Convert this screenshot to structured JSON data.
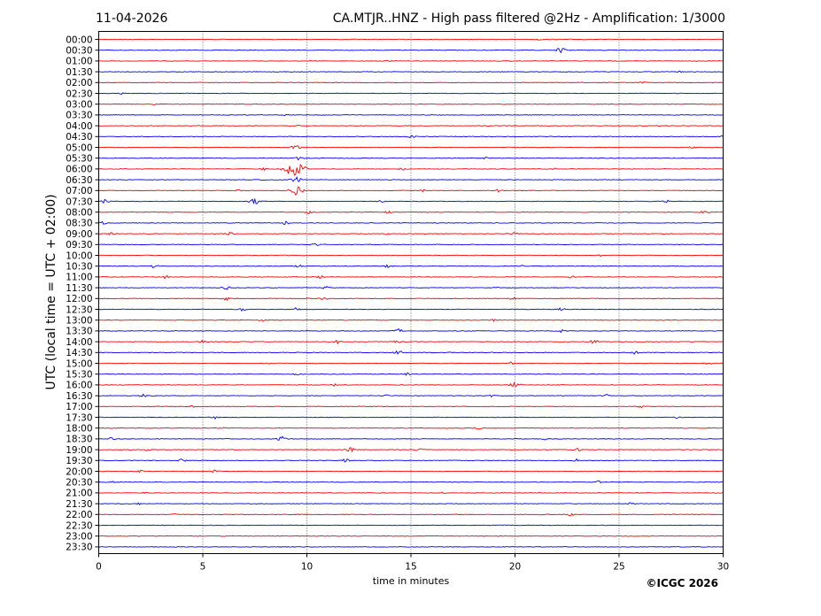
{
  "chart_data": {
    "type": "line",
    "date": "11-04-2026",
    "title": "CA.MTJR..HNZ - High pass filtered @2Hz - Amplification: 1/3000",
    "xlabel": "time in minutes",
    "ylabel": "UTC (local time = UTC + 02:00)",
    "copyright": "©ICGC 2026",
    "xlim": [
      0,
      30
    ],
    "x_ticks": [
      0,
      5,
      10,
      15,
      20,
      25,
      30
    ],
    "grid": "vertical dotted lines at 5-minute intervals",
    "line_colors": [
      "#ff0000",
      "#0000ff"
    ],
    "rows": [
      {
        "label": "00:00",
        "color": "#ff0000",
        "events": [
          {
            "t": 21.1,
            "amp": 0.15
          }
        ]
      },
      {
        "label": "00:30",
        "color": "#0000ff",
        "events": [
          {
            "t": 22.2,
            "amp": 0.45
          }
        ]
      },
      {
        "label": "01:00",
        "color": "#ff0000",
        "events": [
          {
            "t": 13.9,
            "amp": 0.12
          }
        ]
      },
      {
        "label": "01:30",
        "color": "#0000ff",
        "events": [
          {
            "t": 27.9,
            "amp": 0.15
          }
        ]
      },
      {
        "label": "02:00",
        "color": "#ff0000",
        "events": [
          {
            "t": 11.5,
            "amp": 0.15
          },
          {
            "t": 26.1,
            "amp": 0.2
          }
        ]
      },
      {
        "label": "02:30",
        "color": "#0000ff",
        "events": [
          {
            "t": 1.1,
            "amp": 0.12
          }
        ]
      },
      {
        "label": "03:00",
        "color": "#ff0000",
        "events": [
          {
            "t": 2.6,
            "amp": 0.15
          }
        ]
      },
      {
        "label": "03:30",
        "color": "#0000ff",
        "events": [
          {
            "t": 9.0,
            "amp": 0.1
          }
        ]
      },
      {
        "label": "04:00",
        "color": "#ff0000",
        "events": [
          {
            "t": 9.5,
            "amp": 0.1
          }
        ]
      },
      {
        "label": "04:30",
        "color": "#0000ff",
        "events": [
          {
            "t": 15.0,
            "amp": 0.25
          },
          {
            "t": 29.9,
            "amp": 0.15
          }
        ]
      },
      {
        "label": "05:00",
        "color": "#ff0000",
        "events": [
          {
            "t": 9.5,
            "amp": 0.6
          },
          {
            "t": 28.5,
            "amp": 0.15
          }
        ]
      },
      {
        "label": "05:30",
        "color": "#0000ff",
        "events": [
          {
            "t": 18.6,
            "amp": 0.15
          },
          {
            "t": 9.6,
            "amp": 0.35
          }
        ]
      },
      {
        "label": "06:00",
        "color": "#ff0000",
        "events": [
          {
            "t": 9.4,
            "amp": 1.6
          },
          {
            "t": 14.6,
            "amp": 0.3
          },
          {
            "t": 22.0,
            "amp": 0.15
          },
          {
            "t": 7.9,
            "amp": 0.25
          }
        ]
      },
      {
        "label": "06:30",
        "color": "#0000ff",
        "events": [
          {
            "t": 9.5,
            "amp": 0.5
          },
          {
            "t": 7.9,
            "amp": 0.12
          }
        ]
      },
      {
        "label": "07:00",
        "color": "#ff0000",
        "events": [
          {
            "t": 6.8,
            "amp": 0.25
          },
          {
            "t": 15.6,
            "amp": 0.2
          },
          {
            "t": 19.2,
            "amp": 0.3
          },
          {
            "t": 9.5,
            "amp": 0.9
          }
        ]
      },
      {
        "label": "07:30",
        "color": "#0000ff",
        "events": [
          {
            "t": 0.3,
            "amp": 0.35
          },
          {
            "t": 7.5,
            "amp": 0.55
          },
          {
            "t": 13.5,
            "amp": 0.25
          },
          {
            "t": 27.3,
            "amp": 0.25
          }
        ]
      },
      {
        "label": "08:00",
        "color": "#ff0000",
        "events": [
          {
            "t": 10.1,
            "amp": 0.3
          },
          {
            "t": 13.9,
            "amp": 0.3
          },
          {
            "t": 29.1,
            "amp": 0.3
          }
        ]
      },
      {
        "label": "08:30",
        "color": "#0000ff",
        "events": [
          {
            "t": 9.0,
            "amp": 0.3
          },
          {
            "t": 0.2,
            "amp": 0.25
          }
        ]
      },
      {
        "label": "09:00",
        "color": "#ff0000",
        "events": [
          {
            "t": 6.3,
            "amp": 0.35
          },
          {
            "t": 13.9,
            "amp": 0.2
          },
          {
            "t": 19.9,
            "amp": 0.3
          },
          {
            "t": 0.6,
            "amp": 0.2
          }
        ]
      },
      {
        "label": "09:30",
        "color": "#0000ff",
        "events": [
          {
            "t": 10.4,
            "amp": 0.25
          }
        ]
      },
      {
        "label": "10:00",
        "color": "#ff0000",
        "events": [
          {
            "t": 24.1,
            "amp": 0.15
          }
        ]
      },
      {
        "label": "10:30",
        "color": "#0000ff",
        "events": [
          {
            "t": 2.7,
            "amp": 0.35
          },
          {
            "t": 9.6,
            "amp": 0.25
          },
          {
            "t": 13.9,
            "amp": 0.25
          },
          {
            "t": 20.3,
            "amp": 0.15
          }
        ]
      },
      {
        "label": "11:00",
        "color": "#ff0000",
        "events": [
          {
            "t": 3.2,
            "amp": 0.35
          },
          {
            "t": 10.6,
            "amp": 0.3
          },
          {
            "t": 22.7,
            "amp": 0.2
          }
        ]
      },
      {
        "label": "11:30",
        "color": "#0000ff",
        "events": [
          {
            "t": 6.1,
            "amp": 0.35
          },
          {
            "t": 10.9,
            "amp": 0.3
          },
          {
            "t": 19.0,
            "amp": 0.2
          }
        ]
      },
      {
        "label": "12:00",
        "color": "#ff0000",
        "events": [
          {
            "t": 6.1,
            "amp": 0.35
          },
          {
            "t": 10.8,
            "amp": 0.3
          },
          {
            "t": 19.9,
            "amp": 0.2
          }
        ]
      },
      {
        "label": "12:30",
        "color": "#0000ff",
        "events": [
          {
            "t": 6.9,
            "amp": 0.3
          },
          {
            "t": 9.5,
            "amp": 0.3
          },
          {
            "t": 22.2,
            "amp": 0.25
          }
        ]
      },
      {
        "label": "13:00",
        "color": "#ff0000",
        "events": [
          {
            "t": 7.9,
            "amp": 0.3
          },
          {
            "t": 19.0,
            "amp": 0.2
          }
        ]
      },
      {
        "label": "13:30",
        "color": "#0000ff",
        "events": [
          {
            "t": 14.4,
            "amp": 0.35
          },
          {
            "t": 22.2,
            "amp": 0.35
          }
        ]
      },
      {
        "label": "14:00",
        "color": "#ff0000",
        "events": [
          {
            "t": 5.0,
            "amp": 0.3
          },
          {
            "t": 11.5,
            "amp": 0.35
          },
          {
            "t": 14.3,
            "amp": 0.3
          },
          {
            "t": 23.8,
            "amp": 0.35
          }
        ]
      },
      {
        "label": "14:30",
        "color": "#0000ff",
        "events": [
          {
            "t": 14.4,
            "amp": 0.35
          },
          {
            "t": 25.8,
            "amp": 0.35
          }
        ]
      },
      {
        "label": "15:00",
        "color": "#ff0000",
        "events": [
          {
            "t": 8.0,
            "amp": 0.3
          },
          {
            "t": 19.8,
            "amp": 0.25
          },
          {
            "t": 29.3,
            "amp": 0.25
          }
        ]
      },
      {
        "label": "15:30",
        "color": "#0000ff",
        "events": [
          {
            "t": 9.6,
            "amp": 0.3
          },
          {
            "t": 14.8,
            "amp": 0.2
          }
        ]
      },
      {
        "label": "16:00",
        "color": "#ff0000",
        "events": [
          {
            "t": 11.4,
            "amp": 0.25
          },
          {
            "t": 20.0,
            "amp": 0.55
          }
        ]
      },
      {
        "label": "16:30",
        "color": "#0000ff",
        "events": [
          {
            "t": 2.1,
            "amp": 0.3
          },
          {
            "t": 13.7,
            "amp": 0.25
          },
          {
            "t": 18.9,
            "amp": 0.2
          },
          {
            "t": 24.4,
            "amp": 0.3
          }
        ]
      },
      {
        "label": "17:00",
        "color": "#ff0000",
        "events": [
          {
            "t": 26.0,
            "amp": 0.25
          },
          {
            "t": 4.5,
            "amp": 0.2
          }
        ]
      },
      {
        "label": "17:30",
        "color": "#0000ff",
        "events": [
          {
            "t": 5.6,
            "amp": 0.35
          },
          {
            "t": 27.8,
            "amp": 0.2
          }
        ]
      },
      {
        "label": "18:00",
        "color": "#ff0000",
        "events": [
          {
            "t": 18.2,
            "amp": 0.25
          },
          {
            "t": 6.0,
            "amp": 0.15
          }
        ]
      },
      {
        "label": "18:30",
        "color": "#0000ff",
        "events": [
          {
            "t": 0.6,
            "amp": 0.3
          },
          {
            "t": 8.8,
            "amp": 0.45
          },
          {
            "t": 21.5,
            "amp": 0.25
          }
        ]
      },
      {
        "label": "19:00",
        "color": "#ff0000",
        "events": [
          {
            "t": 2.4,
            "amp": 0.3
          },
          {
            "t": 12.1,
            "amp": 0.35
          },
          {
            "t": 23.0,
            "amp": 0.3
          },
          {
            "t": 15.4,
            "amp": 0.25
          }
        ]
      },
      {
        "label": "19:30",
        "color": "#0000ff",
        "events": [
          {
            "t": 4.0,
            "amp": 0.25
          },
          {
            "t": 11.9,
            "amp": 0.35
          },
          {
            "t": 23.0,
            "amp": 0.3
          }
        ]
      },
      {
        "label": "20:00",
        "color": "#ff0000",
        "events": [
          {
            "t": 5.6,
            "amp": 0.3
          },
          {
            "t": 2.0,
            "amp": 0.2
          }
        ]
      },
      {
        "label": "20:30",
        "color": "#0000ff",
        "events": [
          {
            "t": 24.1,
            "amp": 0.3
          },
          {
            "t": 0.7,
            "amp": 0.2
          }
        ]
      },
      {
        "label": "21:00",
        "color": "#ff0000",
        "events": [
          {
            "t": 2.1,
            "amp": 0.2
          },
          {
            "t": 16.5,
            "amp": 0.2
          }
        ]
      },
      {
        "label": "21:30",
        "color": "#0000ff",
        "events": [
          {
            "t": 1.9,
            "amp": 0.2
          },
          {
            "t": 25.6,
            "amp": 0.25
          }
        ]
      },
      {
        "label": "22:00",
        "color": "#ff0000",
        "events": [
          {
            "t": 21.2,
            "amp": 0.2
          },
          {
            "t": 22.7,
            "amp": 0.25
          },
          {
            "t": 3.6,
            "amp": 0.12
          }
        ]
      },
      {
        "label": "22:30",
        "color": "#0000ff",
        "events": [
          {
            "t": 3.0,
            "amp": 0.1
          }
        ]
      },
      {
        "label": "23:00",
        "color": "#ff0000",
        "events": []
      },
      {
        "label": "23:30",
        "color": "#0000ff",
        "events": []
      }
    ]
  }
}
